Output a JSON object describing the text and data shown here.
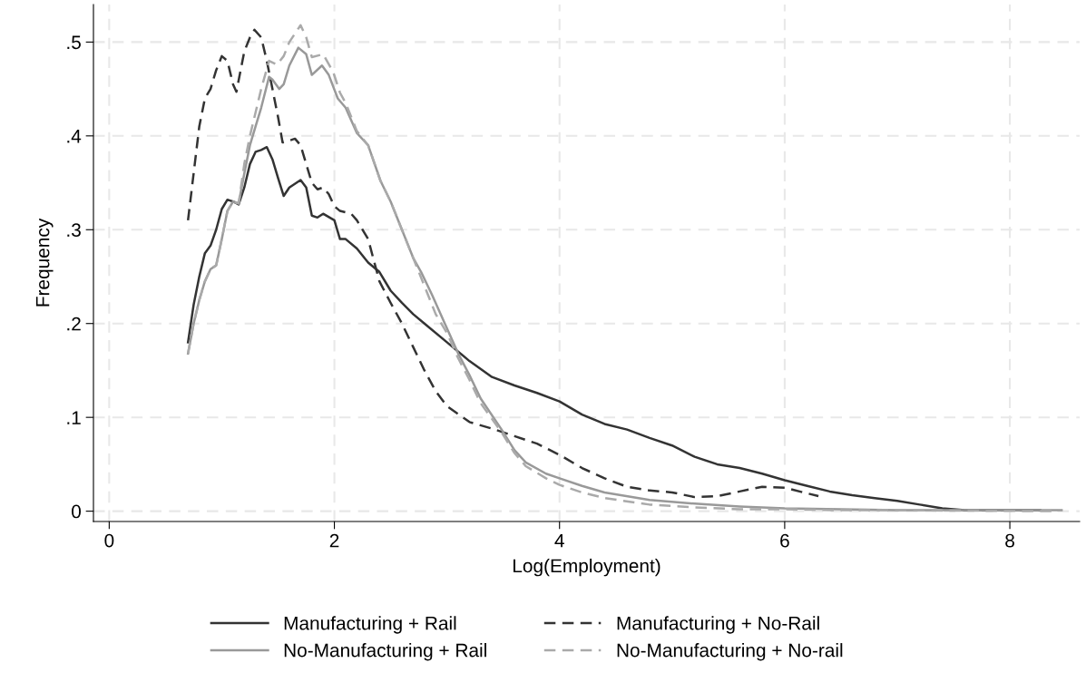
{
  "chart_data": {
    "type": "line",
    "xlabel": "Log(Employment)",
    "ylabel": "Frequency",
    "xlim": [
      -0.14,
      8.62
    ],
    "ylim": [
      -0.011,
      0.54
    ],
    "xticks": [
      0,
      2,
      4,
      6,
      8
    ],
    "yticks": [
      0,
      {
        "value": 0.1,
        "label": ".1"
      },
      {
        "value": 0.2,
        "label": ".2"
      },
      {
        "value": 0.3,
        "label": ".3"
      },
      {
        "value": 0.4,
        "label": ".4"
      },
      {
        "value": 0.5,
        "label": ".5"
      }
    ],
    "grid": true,
    "legend": "bottom",
    "marker": "none",
    "series": [
      {
        "name": "Manufacturing + Rail",
        "color": "#333333",
        "line_style": "solid",
        "x": [
          0.7,
          0.75,
          0.8,
          0.85,
          0.9,
          0.95,
          1.0,
          1.05,
          1.1,
          1.15,
          1.2,
          1.25,
          1.3,
          1.35,
          1.4,
          1.45,
          1.5,
          1.55,
          1.6,
          1.7,
          1.75,
          1.8,
          1.85,
          1.9,
          2.0,
          2.05,
          2.1,
          2.2,
          2.3,
          2.4,
          2.5,
          2.6,
          2.7,
          2.8,
          3.0,
          3.2,
          3.4,
          3.6,
          3.8,
          4.0,
          4.2,
          4.4,
          4.6,
          4.8,
          5.0,
          5.2,
          5.4,
          5.6,
          5.8,
          6.0,
          6.2,
          6.4,
          6.6,
          6.8,
          7.0,
          7.2,
          7.4,
          7.6,
          8.0,
          8.27
        ],
        "values": [
          0.18,
          0.22,
          0.25,
          0.275,
          0.283,
          0.3,
          0.322,
          0.332,
          0.33,
          0.327,
          0.345,
          0.37,
          0.383,
          0.385,
          0.388,
          0.375,
          0.355,
          0.336,
          0.345,
          0.353,
          0.345,
          0.315,
          0.313,
          0.317,
          0.31,
          0.29,
          0.29,
          0.28,
          0.265,
          0.255,
          0.235,
          0.222,
          0.21,
          0.2,
          0.18,
          0.16,
          0.143,
          0.134,
          0.126,
          0.117,
          0.103,
          0.093,
          0.087,
          0.078,
          0.07,
          0.058,
          0.05,
          0.046,
          0.04,
          0.033,
          0.027,
          0.021,
          0.017,
          0.014,
          0.011,
          0.007,
          0.003,
          0.001,
          0.001,
          0.001
        ]
      },
      {
        "name": "Manufacturing + No-Rail",
        "color": "#333333",
        "line_style": "dashed",
        "x": [
          0.7,
          0.75,
          0.8,
          0.85,
          0.9,
          0.95,
          1.0,
          1.05,
          1.1,
          1.13,
          1.2,
          1.25,
          1.29,
          1.35,
          1.4,
          1.45,
          1.5,
          1.54,
          1.6,
          1.65,
          1.7,
          1.75,
          1.8,
          1.85,
          1.9,
          1.95,
          2.0,
          2.05,
          2.15,
          2.2,
          2.3,
          2.4,
          2.5,
          2.6,
          2.7,
          2.8,
          2.9,
          3.0,
          3.2,
          3.4,
          3.6,
          3.8,
          4.0,
          4.2,
          4.4,
          4.6,
          4.8,
          5.0,
          5.2,
          5.4,
          5.6,
          5.8,
          6.0,
          6.2,
          6.3
        ],
        "values": [
          0.31,
          0.36,
          0.41,
          0.44,
          0.45,
          0.47,
          0.485,
          0.48,
          0.455,
          0.447,
          0.49,
          0.505,
          0.513,
          0.505,
          0.48,
          0.45,
          0.42,
          0.393,
          0.395,
          0.397,
          0.39,
          0.37,
          0.35,
          0.343,
          0.345,
          0.338,
          0.325,
          0.32,
          0.317,
          0.31,
          0.29,
          0.245,
          0.222,
          0.2,
          0.175,
          0.15,
          0.128,
          0.112,
          0.095,
          0.088,
          0.08,
          0.072,
          0.06,
          0.046,
          0.035,
          0.026,
          0.022,
          0.02,
          0.015,
          0.016,
          0.021,
          0.026,
          0.025,
          0.019,
          0.016
        ]
      },
      {
        "name": "No-Manufacturing + Rail",
        "color": "#999999",
        "line_style": "solid",
        "x": [
          0.7,
          0.75,
          0.8,
          0.85,
          0.9,
          0.95,
          1.0,
          1.05,
          1.1,
          1.15,
          1.2,
          1.25,
          1.3,
          1.35,
          1.42,
          1.45,
          1.51,
          1.55,
          1.6,
          1.68,
          1.75,
          1.8,
          1.89,
          1.95,
          2.03,
          2.1,
          2.2,
          2.3,
          2.41,
          2.5,
          2.6,
          2.7,
          2.77,
          2.87,
          3.0,
          3.1,
          3.2,
          3.3,
          3.48,
          3.6,
          3.7,
          3.88,
          4.0,
          4.2,
          4.4,
          4.8,
          5.2,
          5.6,
          6.0,
          6.5,
          7.0,
          8.46
        ],
        "values": [
          0.168,
          0.2,
          0.225,
          0.245,
          0.258,
          0.262,
          0.29,
          0.32,
          0.33,
          0.328,
          0.36,
          0.39,
          0.41,
          0.43,
          0.463,
          0.46,
          0.45,
          0.455,
          0.475,
          0.494,
          0.487,
          0.465,
          0.475,
          0.465,
          0.44,
          0.43,
          0.403,
          0.39,
          0.352,
          0.33,
          0.3,
          0.27,
          0.255,
          0.23,
          0.195,
          0.168,
          0.145,
          0.12,
          0.088,
          0.065,
          0.052,
          0.04,
          0.035,
          0.027,
          0.02,
          0.012,
          0.008,
          0.005,
          0.003,
          0.002,
          0.001,
          0.001
        ]
      },
      {
        "name": "No-Manufacturing + No-rail",
        "color": "#aaaaaa",
        "line_style": "dashed",
        "x": [
          0.7,
          0.75,
          0.8,
          0.85,
          0.9,
          0.95,
          1.0,
          1.05,
          1.1,
          1.15,
          1.2,
          1.25,
          1.3,
          1.35,
          1.42,
          1.49,
          1.55,
          1.6,
          1.7,
          1.75,
          1.8,
          1.9,
          1.99,
          2.05,
          2.1,
          2.2,
          2.3,
          2.41,
          2.5,
          2.6,
          2.7,
          2.8,
          2.9,
          3.0,
          3.1,
          3.2,
          3.3,
          3.48,
          3.6,
          3.7,
          3.88,
          4.0,
          4.2,
          4.4,
          4.8,
          5.2,
          5.6,
          6.0,
          6.5,
          7.0,
          8.4
        ],
        "values": [
          0.168,
          0.2,
          0.225,
          0.245,
          0.258,
          0.262,
          0.29,
          0.32,
          0.33,
          0.328,
          0.37,
          0.4,
          0.425,
          0.45,
          0.48,
          0.476,
          0.485,
          0.5,
          0.518,
          0.505,
          0.484,
          0.487,
          0.468,
          0.446,
          0.435,
          0.405,
          0.39,
          0.352,
          0.33,
          0.3,
          0.27,
          0.24,
          0.21,
          0.19,
          0.163,
          0.14,
          0.115,
          0.085,
          0.062,
          0.048,
          0.035,
          0.028,
          0.02,
          0.014,
          0.007,
          0.004,
          0.002,
          0.002,
          0.001,
          0.001,
          0
        ]
      }
    ]
  }
}
